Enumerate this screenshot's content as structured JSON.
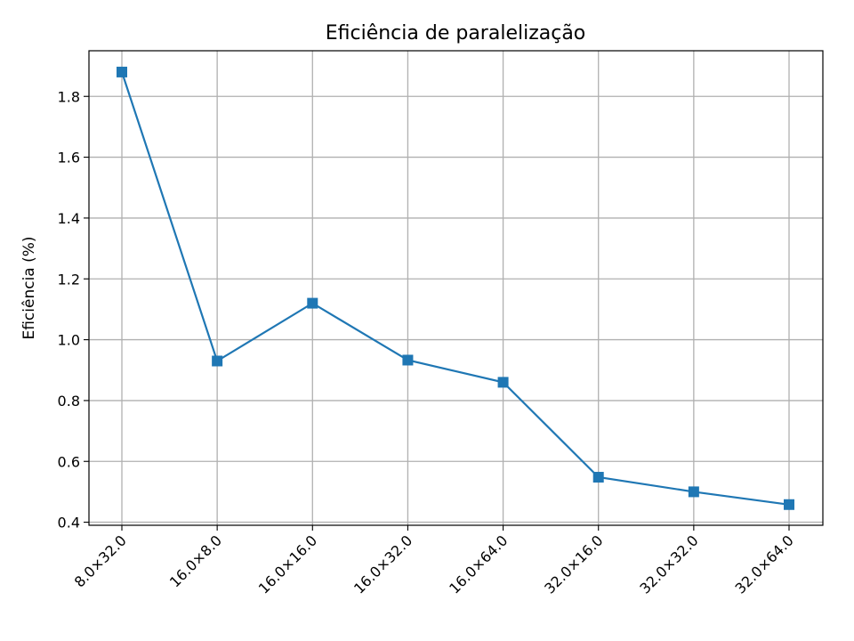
{
  "chart_data": {
    "type": "line",
    "title": "Eficiência de paralelização",
    "xlabel": "",
    "ylabel": "Eficiência (%)",
    "categories": [
      "8.0×32.0",
      "16.0×8.0",
      "16.0×16.0",
      "16.0×32.0",
      "16.0×64.0",
      "32.0×16.0",
      "32.0×32.0",
      "32.0×64.0"
    ],
    "series": [
      {
        "values": [
          1.88,
          0.93,
          1.12,
          0.933,
          0.86,
          0.548,
          0.5,
          0.458
        ]
      }
    ],
    "ylim": [
      0.39,
      1.95
    ],
    "yticks": [
      "0.4",
      "0.6",
      "0.8",
      "1.0",
      "1.2",
      "1.4",
      "1.6",
      "1.8"
    ],
    "grid": true,
    "marker": "square",
    "colors": {
      "line": "#1f77b4",
      "grid": "#b0b0b0"
    }
  }
}
